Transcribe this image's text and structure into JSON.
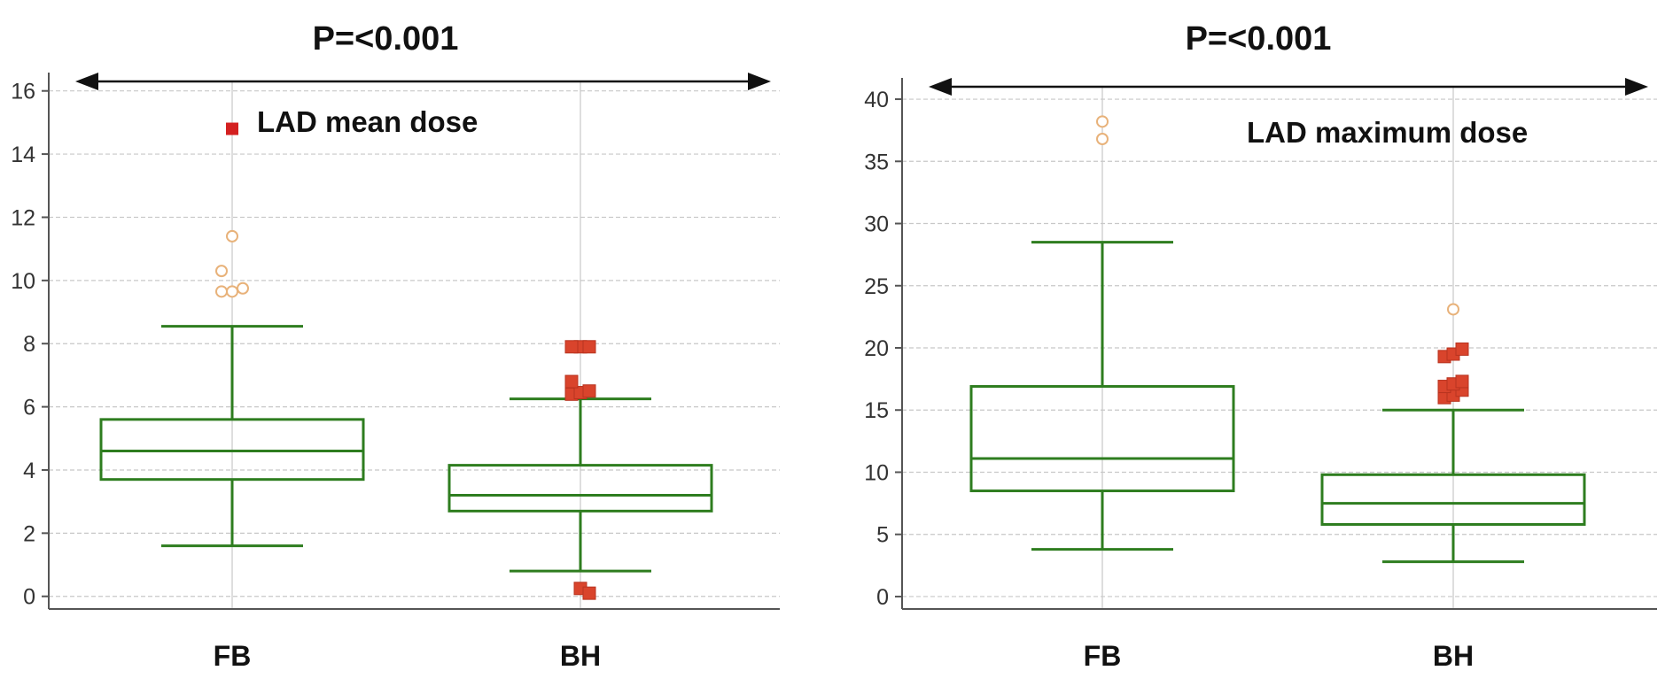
{
  "chart_data": [
    {
      "type": "box",
      "title": "P=<0.001",
      "legend": "LAD mean dose",
      "ylim": [
        -0.4,
        16.3
      ],
      "yticks": [
        0,
        2,
        4,
        6,
        8,
        10,
        12,
        14,
        16
      ],
      "categories": [
        "FB",
        "BH"
      ],
      "boxes": [
        {
          "category": "FB",
          "whisker_low": 1.6,
          "q1": 3.7,
          "median": 4.6,
          "q3": 5.6,
          "whisker_high": 8.55,
          "outliers_far": [],
          "outliers_near": [
            9.65,
            9.65,
            9.75,
            10.3,
            11.4
          ]
        },
        {
          "category": "BH",
          "whisker_low": 0.8,
          "q1": 2.7,
          "median": 3.2,
          "q3": 4.15,
          "whisker_high": 6.25,
          "outliers_far": [
            6.4,
            6.45,
            6.5,
            6.8,
            7.9,
            7.9,
            7.9,
            0.25,
            0.1
          ],
          "outliers_near": []
        }
      ],
      "extra_marker": {
        "category": "FB",
        "value": 14.8,
        "shape": "square"
      }
    },
    {
      "type": "box",
      "title": "P=<0.001",
      "legend": "LAD maximum dose",
      "ylim": [
        -1,
        41
      ],
      "yticks": [
        0,
        5,
        10,
        15,
        20,
        25,
        30,
        35,
        40
      ],
      "categories": [
        "FB",
        "BH"
      ],
      "boxes": [
        {
          "category": "FB",
          "whisker_low": 3.8,
          "q1": 8.5,
          "median": 11.1,
          "q3": 16.9,
          "whisker_high": 28.5,
          "outliers_far": [],
          "outliers_near": [
            36.8,
            38.2
          ]
        },
        {
          "category": "BH",
          "whisker_low": 2.8,
          "q1": 5.8,
          "median": 7.5,
          "q3": 9.8,
          "whisker_high": 15.0,
          "outliers_far": [
            16.0,
            16.2,
            16.6,
            16.9,
            17.1,
            17.3,
            19.3,
            19.5,
            19.9
          ],
          "outliers_near": [
            23.1
          ]
        }
      ],
      "extra_marker": null
    }
  ],
  "colors": {
    "box": "#2e7d1f",
    "far": "#d9442c",
    "near": "#e8b27a",
    "marker": "#d42020",
    "arrow": "#111111"
  }
}
